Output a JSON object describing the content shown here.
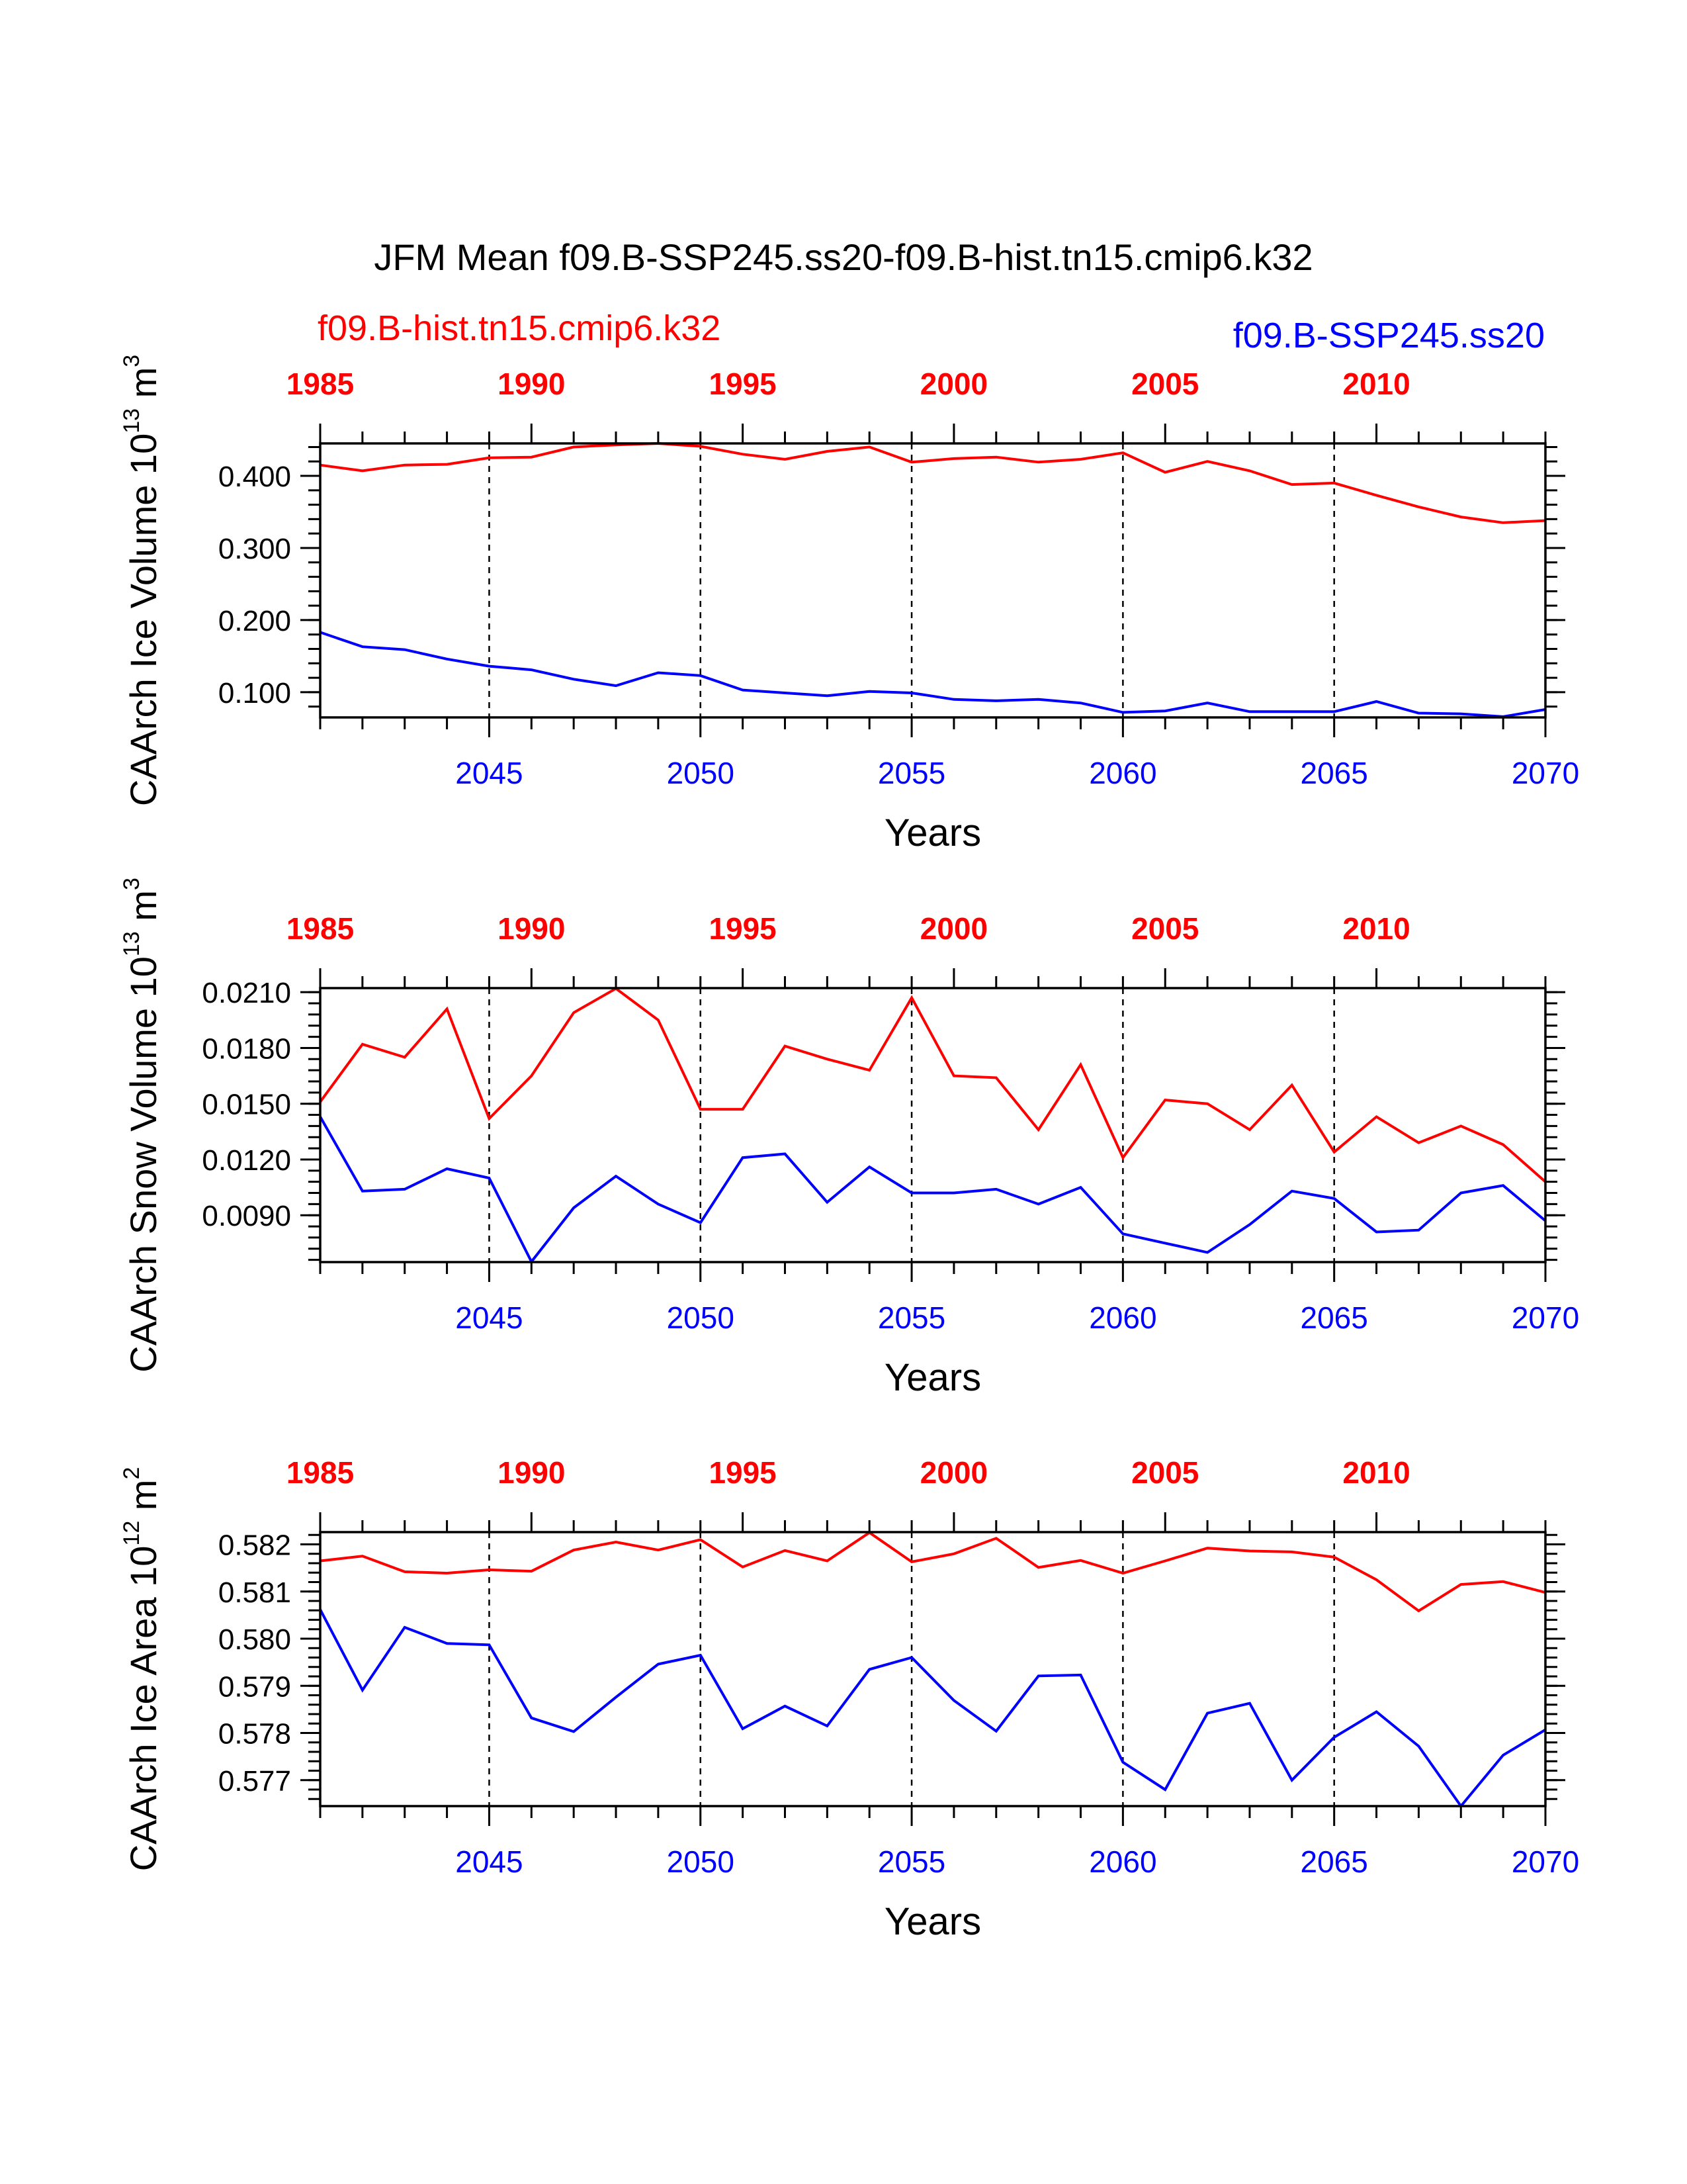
{
  "title": "JFM Mean f09.B-SSP245.ss20-f09.B-hist.tn15.cmip6.k32",
  "legend": {
    "left_label": "f09.B-hist.tn15.cmip6.k32",
    "right_label": "f09.B-SSP245.ss20"
  },
  "colors": {
    "hist": "#ff0000",
    "ssp": "#0000ff",
    "axis": "#000000"
  },
  "top_axis_ticks": [
    "1985",
    "1990",
    "1995",
    "2000",
    "2005",
    "2010"
  ],
  "bottom_axis_ticks": [
    "2045",
    "2050",
    "2055",
    "2060",
    "2065",
    "2070"
  ],
  "chart_data": [
    {
      "type": "line",
      "xlabel": "Years",
      "ylabel": "CAArch Ice Volume 10",
      "ylabel_exp": "13",
      "ylabel_unit": " m",
      "ylabel_unit_exp": "3",
      "x_bottom": [
        2041,
        2042,
        2043,
        2044,
        2045,
        2046,
        2047,
        2048,
        2049,
        2050,
        2051,
        2052,
        2053,
        2054,
        2055,
        2056,
        2057,
        2058,
        2059,
        2060,
        2061,
        2062,
        2063,
        2064,
        2065,
        2066,
        2067,
        2068,
        2069,
        2070
      ],
      "x_top_range": [
        1985,
        2014
      ],
      "xlim_bottom": [
        2041,
        2070
      ],
      "ylim": [
        0.065,
        0.445
      ],
      "y_ticks": [
        "0.100",
        "0.200",
        "0.300",
        "0.400"
      ],
      "y_tick_values": [
        0.1,
        0.2,
        0.3,
        0.4
      ],
      "series": [
        {
          "name": "f09.B-hist.tn15.cmip6.k32",
          "axis": "top",
          "values": [
            0.415,
            0.407,
            0.415,
            0.416,
            0.425,
            0.426,
            0.44,
            0.443,
            0.445,
            0.441,
            0.43,
            0.423,
            0.434,
            0.44,
            0.419,
            0.424,
            0.426,
            0.419,
            0.423,
            0.432,
            0.405,
            0.42,
            0.407,
            0.388,
            0.39,
            0.373,
            0.357,
            0.343,
            0.335,
            0.338
          ]
        },
        {
          "name": "f09.B-SSP245.ss20",
          "axis": "bottom",
          "values": [
            0.183,
            0.163,
            0.159,
            0.146,
            0.136,
            0.131,
            0.118,
            0.109,
            0.127,
            0.123,
            0.103,
            0.099,
            0.095,
            0.101,
            0.099,
            0.09,
            0.088,
            0.09,
            0.085,
            0.072,
            0.074,
            0.085,
            0.073,
            0.073,
            0.073,
            0.087,
            0.071,
            0.07,
            0.066,
            0.076
          ]
        }
      ]
    },
    {
      "type": "line",
      "xlabel": "Years",
      "ylabel": "CAArch Snow Volume 10",
      "ylabel_exp": "13",
      "ylabel_unit": " m",
      "ylabel_unit_exp": "3",
      "x_bottom": [
        2041,
        2042,
        2043,
        2044,
        2045,
        2046,
        2047,
        2048,
        2049,
        2050,
        2051,
        2052,
        2053,
        2054,
        2055,
        2056,
        2057,
        2058,
        2059,
        2060,
        2061,
        2062,
        2063,
        2064,
        2065,
        2066,
        2067,
        2068,
        2069,
        2070
      ],
      "x_top_range": [
        1985,
        2014
      ],
      "xlim_bottom": [
        2041,
        2070
      ],
      "ylim": [
        0.00648,
        0.02122
      ],
      "y_ticks": [
        "0.0090",
        "0.0120",
        "0.0150",
        "0.0180",
        "0.0210"
      ],
      "y_tick_values": [
        0.009,
        0.012,
        0.015,
        0.018,
        0.021
      ],
      "series": [
        {
          "name": "f09.B-hist.tn15.cmip6.k32",
          "axis": "top",
          "values": [
            0.0151,
            0.0182,
            0.0175,
            0.0201,
            0.0142,
            0.0165,
            0.0199,
            0.0212,
            0.0195,
            0.0147,
            0.0147,
            0.0181,
            0.0174,
            0.0168,
            0.0207,
            0.0165,
            0.0164,
            0.0136,
            0.0171,
            0.0121,
            0.0152,
            0.015,
            0.0136,
            0.016,
            0.0124,
            0.0143,
            0.0129,
            0.0138,
            0.0128,
            0.0108
          ]
        },
        {
          "name": "f09.B-SSP245.ss20",
          "axis": "bottom",
          "values": [
            0.0143,
            0.0103,
            0.0104,
            0.0115,
            0.011,
            0.0065,
            0.0094,
            0.0111,
            0.0096,
            0.0086,
            0.0121,
            0.0123,
            0.0097,
            0.0116,
            0.0102,
            0.0102,
            0.0104,
            0.0096,
            0.0105,
            0.008,
            0.0075,
            0.007,
            0.0085,
            0.0103,
            0.0099,
            0.0081,
            0.0082,
            0.0102,
            0.0106,
            0.0087
          ]
        }
      ]
    },
    {
      "type": "line",
      "xlabel": "Years",
      "ylabel": "CAArch Ice Area 10",
      "ylabel_exp": "12",
      "ylabel_unit": " m",
      "ylabel_unit_exp": "2",
      "x_bottom": [
        2041,
        2042,
        2043,
        2044,
        2045,
        2046,
        2047,
        2048,
        2049,
        2050,
        2051,
        2052,
        2053,
        2054,
        2055,
        2056,
        2057,
        2058,
        2059,
        2060,
        2061,
        2062,
        2063,
        2064,
        2065,
        2066,
        2067,
        2068,
        2069,
        2070
      ],
      "x_top_range": [
        1985,
        2014
      ],
      "xlim_bottom": [
        2041,
        2070
      ],
      "ylim": [
        0.57645,
        0.58226
      ],
      "y_ticks": [
        "0.577",
        "0.578",
        "0.579",
        "0.580",
        "0.581",
        "0.582"
      ],
      "y_tick_values": [
        0.577,
        0.578,
        0.579,
        0.58,
        0.581,
        0.582
      ],
      "series": [
        {
          "name": "f09.B-hist.tn15.cmip6.k32",
          "axis": "top",
          "values": [
            0.58165,
            0.58175,
            0.58142,
            0.58139,
            0.58146,
            0.58143,
            0.58188,
            0.58205,
            0.58188,
            0.5821,
            0.58152,
            0.58187,
            0.58165,
            0.58225,
            0.58163,
            0.5818,
            0.58213,
            0.58151,
            0.58166,
            0.58139,
            0.58165,
            0.58192,
            0.58186,
            0.58184,
            0.58173,
            0.58125,
            0.58059,
            0.58115,
            0.58121,
            0.58098
          ]
        },
        {
          "name": "f09.B-SSP245.ss20",
          "axis": "bottom",
          "values": [
            0.58062,
            0.57891,
            0.58024,
            0.5799,
            0.57987,
            0.57832,
            0.57803,
            0.57876,
            0.57946,
            0.57965,
            0.57809,
            0.57857,
            0.57815,
            0.57935,
            0.5796,
            0.57869,
            0.57804,
            0.57921,
            0.57923,
            0.57738,
            0.5768,
            0.57842,
            0.57863,
            0.577,
            0.57791,
            0.57845,
            0.57772,
            0.57645,
            0.57753,
            0.57807
          ]
        }
      ]
    }
  ]
}
